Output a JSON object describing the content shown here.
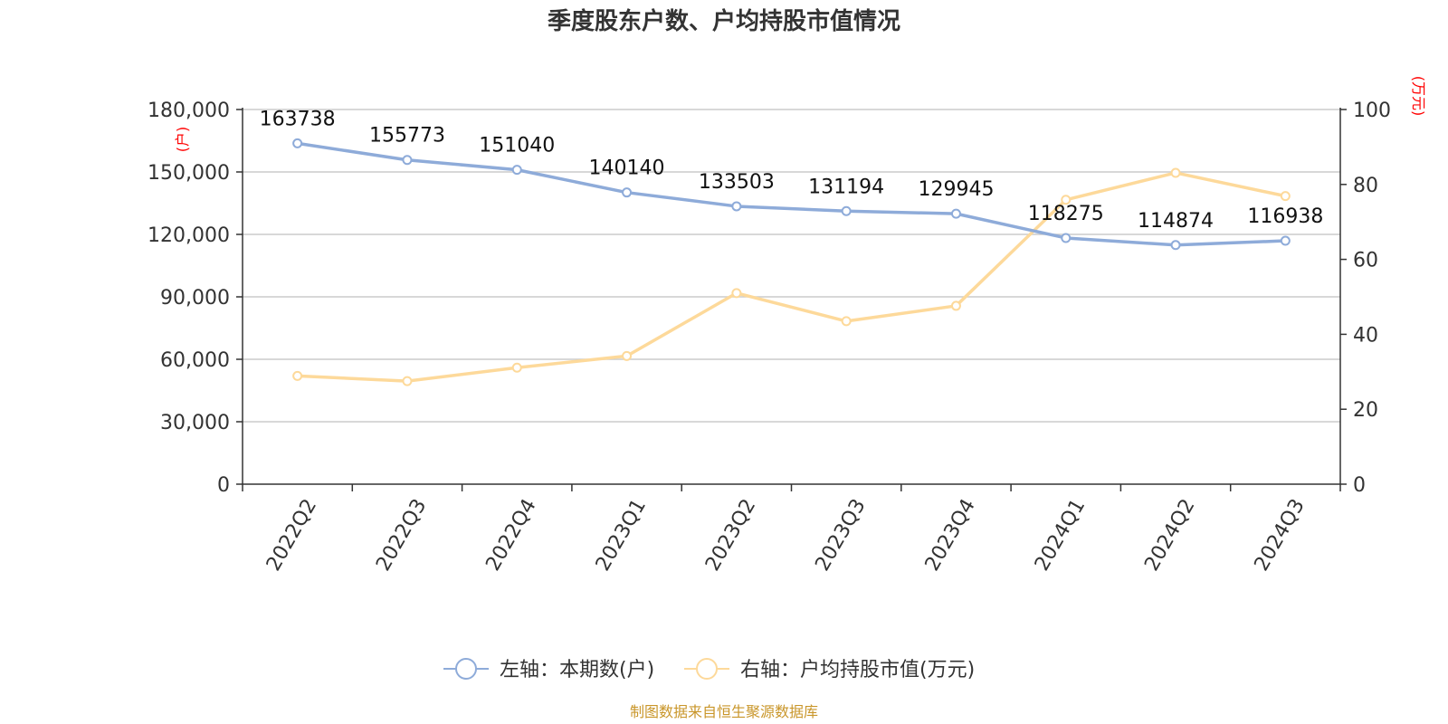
{
  "colors": {
    "series_left": "#8eabd9",
    "series_right": "#fdd99a",
    "grid": "#cccccc",
    "axis": "#333333",
    "unit": "#ff0000",
    "source": "#c9962a"
  },
  "chart_data": {
    "type": "line",
    "title": "季度股东户数、户均持股市值情况",
    "categories": [
      "2022Q2",
      "2022Q3",
      "2022Q4",
      "2023Q1",
      "2023Q2",
      "2023Q3",
      "2023Q4",
      "2024Q1",
      "2024Q2",
      "2024Q3"
    ],
    "left_axis": {
      "unit": "(户)",
      "range": [
        0,
        180000
      ],
      "ticks": [
        0,
        30000,
        60000,
        90000,
        120000,
        150000,
        180000
      ],
      "tick_labels": [
        "0",
        "30,000",
        "60,000",
        "90,000",
        "120,000",
        "150,000",
        "180,000"
      ]
    },
    "right_axis": {
      "unit": "(万元)",
      "range": [
        0,
        100
      ],
      "ticks": [
        0,
        20,
        40,
        60,
        80,
        100
      ],
      "tick_labels": [
        "0",
        "20",
        "40",
        "60",
        "80",
        "100"
      ]
    },
    "grid": true,
    "legend_position": "bottom-center",
    "series": [
      {
        "name": "左轴：本期数(户)",
        "axis": "left",
        "values": [
          163738,
          155773,
          151040,
          140140,
          133503,
          131194,
          129945,
          118275,
          114874,
          116938
        ],
        "labels": [
          "163738",
          "155773",
          "151040",
          "140140",
          "133503",
          "131194",
          "129945",
          "118275",
          "114874",
          "116938"
        ]
      },
      {
        "name": "右轴：户均持股市值(万元)",
        "axis": "right",
        "values": [
          28.9,
          27.5,
          31.1,
          34.2,
          51.0,
          43.5,
          47.6,
          75.9,
          83.1,
          76.9
        ]
      }
    ],
    "source": "制图数据来自恒生聚源数据库"
  }
}
